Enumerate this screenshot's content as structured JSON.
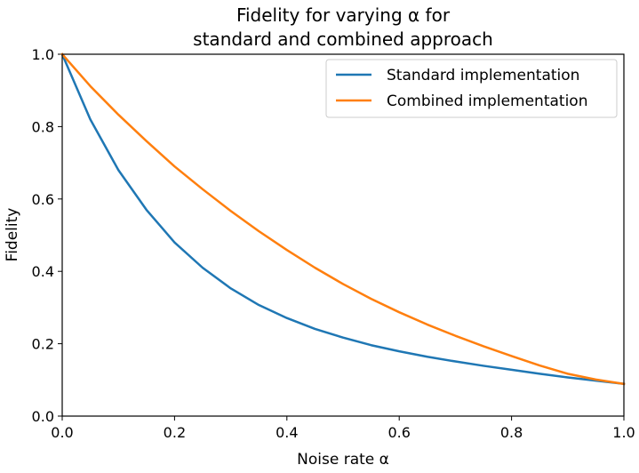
{
  "chart_data": {
    "type": "line",
    "title_line1": "Fidelity for varying α for",
    "title_line2": "standard and combined approach",
    "xlabel": "Noise rate α",
    "ylabel": "Fidelity",
    "xlim": [
      0.0,
      1.0
    ],
    "ylim": [
      0.0,
      1.0
    ],
    "x_ticks": [
      "0.0",
      "0.2",
      "0.4",
      "0.6",
      "0.8",
      "1.0"
    ],
    "y_ticks": [
      "0.0",
      "0.2",
      "0.4",
      "0.6",
      "0.8",
      "1.0"
    ],
    "grid": false,
    "legend_position": "top-right",
    "x": [
      0.0,
      0.05,
      0.1,
      0.15,
      0.2,
      0.25,
      0.3,
      0.35,
      0.4,
      0.45,
      0.5,
      0.55,
      0.6,
      0.65,
      0.7,
      0.75,
      0.8,
      0.85,
      0.9,
      0.95,
      1.0
    ],
    "series": [
      {
        "name": "Standard implementation",
        "color": "#1f77b4",
        "values": [
          1.0,
          0.82,
          0.68,
          0.57,
          0.48,
          0.41,
          0.353,
          0.307,
          0.271,
          0.241,
          0.217,
          0.196,
          0.179,
          0.164,
          0.151,
          0.139,
          0.128,
          0.117,
          0.107,
          0.098,
          0.089
        ]
      },
      {
        "name": "Combined implementation",
        "color": "#ff7f0e",
        "values": [
          1.0,
          0.912,
          0.833,
          0.76,
          0.69,
          0.627,
          0.567,
          0.511,
          0.459,
          0.41,
          0.365,
          0.324,
          0.287,
          0.253,
          0.222,
          0.193,
          0.166,
          0.14,
          0.117,
          0.101,
          0.089
        ]
      }
    ]
  }
}
